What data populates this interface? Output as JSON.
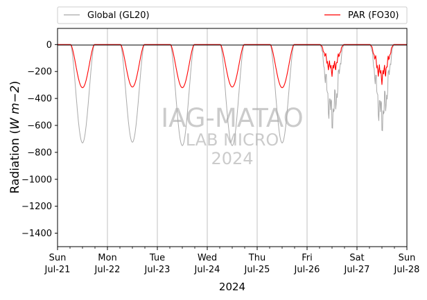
{
  "chart_data": {
    "type": "line",
    "xlabel": "2024",
    "ylabel": "Radiation (W m−2)",
    "ylim": [
      -1500,
      120
    ],
    "xlim": [
      "2024-07-21",
      "2024-07-28"
    ],
    "yticks": [
      "0",
      "−200",
      "−400",
      "−600",
      "−800",
      "−1000",
      "−1200",
      "−1400"
    ],
    "xticks": [
      {
        "day": "Sun",
        "date": "Jul-21"
      },
      {
        "day": "Mon",
        "date": "Jul-22"
      },
      {
        "day": "Tue",
        "date": "Jul-23"
      },
      {
        "day": "Wed",
        "date": "Jul-24"
      },
      {
        "day": "Thu",
        "date": "Jul-25"
      },
      {
        "day": "Fri",
        "date": "Jul-26"
      },
      {
        "day": "Sat",
        "date": "Jul-27"
      },
      {
        "day": "Sun",
        "date": "Jul-28"
      }
    ],
    "grid": "vertical",
    "zero_line": true,
    "legend_placement": "top",
    "watermark": [
      "IAG-MATAO",
      "LAB MICRO",
      "2024"
    ],
    "series": [
      {
        "name": "Global (GL20)",
        "color": "#a9a9a9",
        "daily_min": [
          -730,
          -725,
          -750,
          -750,
          -730,
          -670,
          -690
        ]
      },
      {
        "name": "PAR (FO30)",
        "color": "#ff0000",
        "daily_min": [
          -320,
          -315,
          -320,
          -315,
          -320,
          -240,
          -300
        ]
      }
    ]
  }
}
